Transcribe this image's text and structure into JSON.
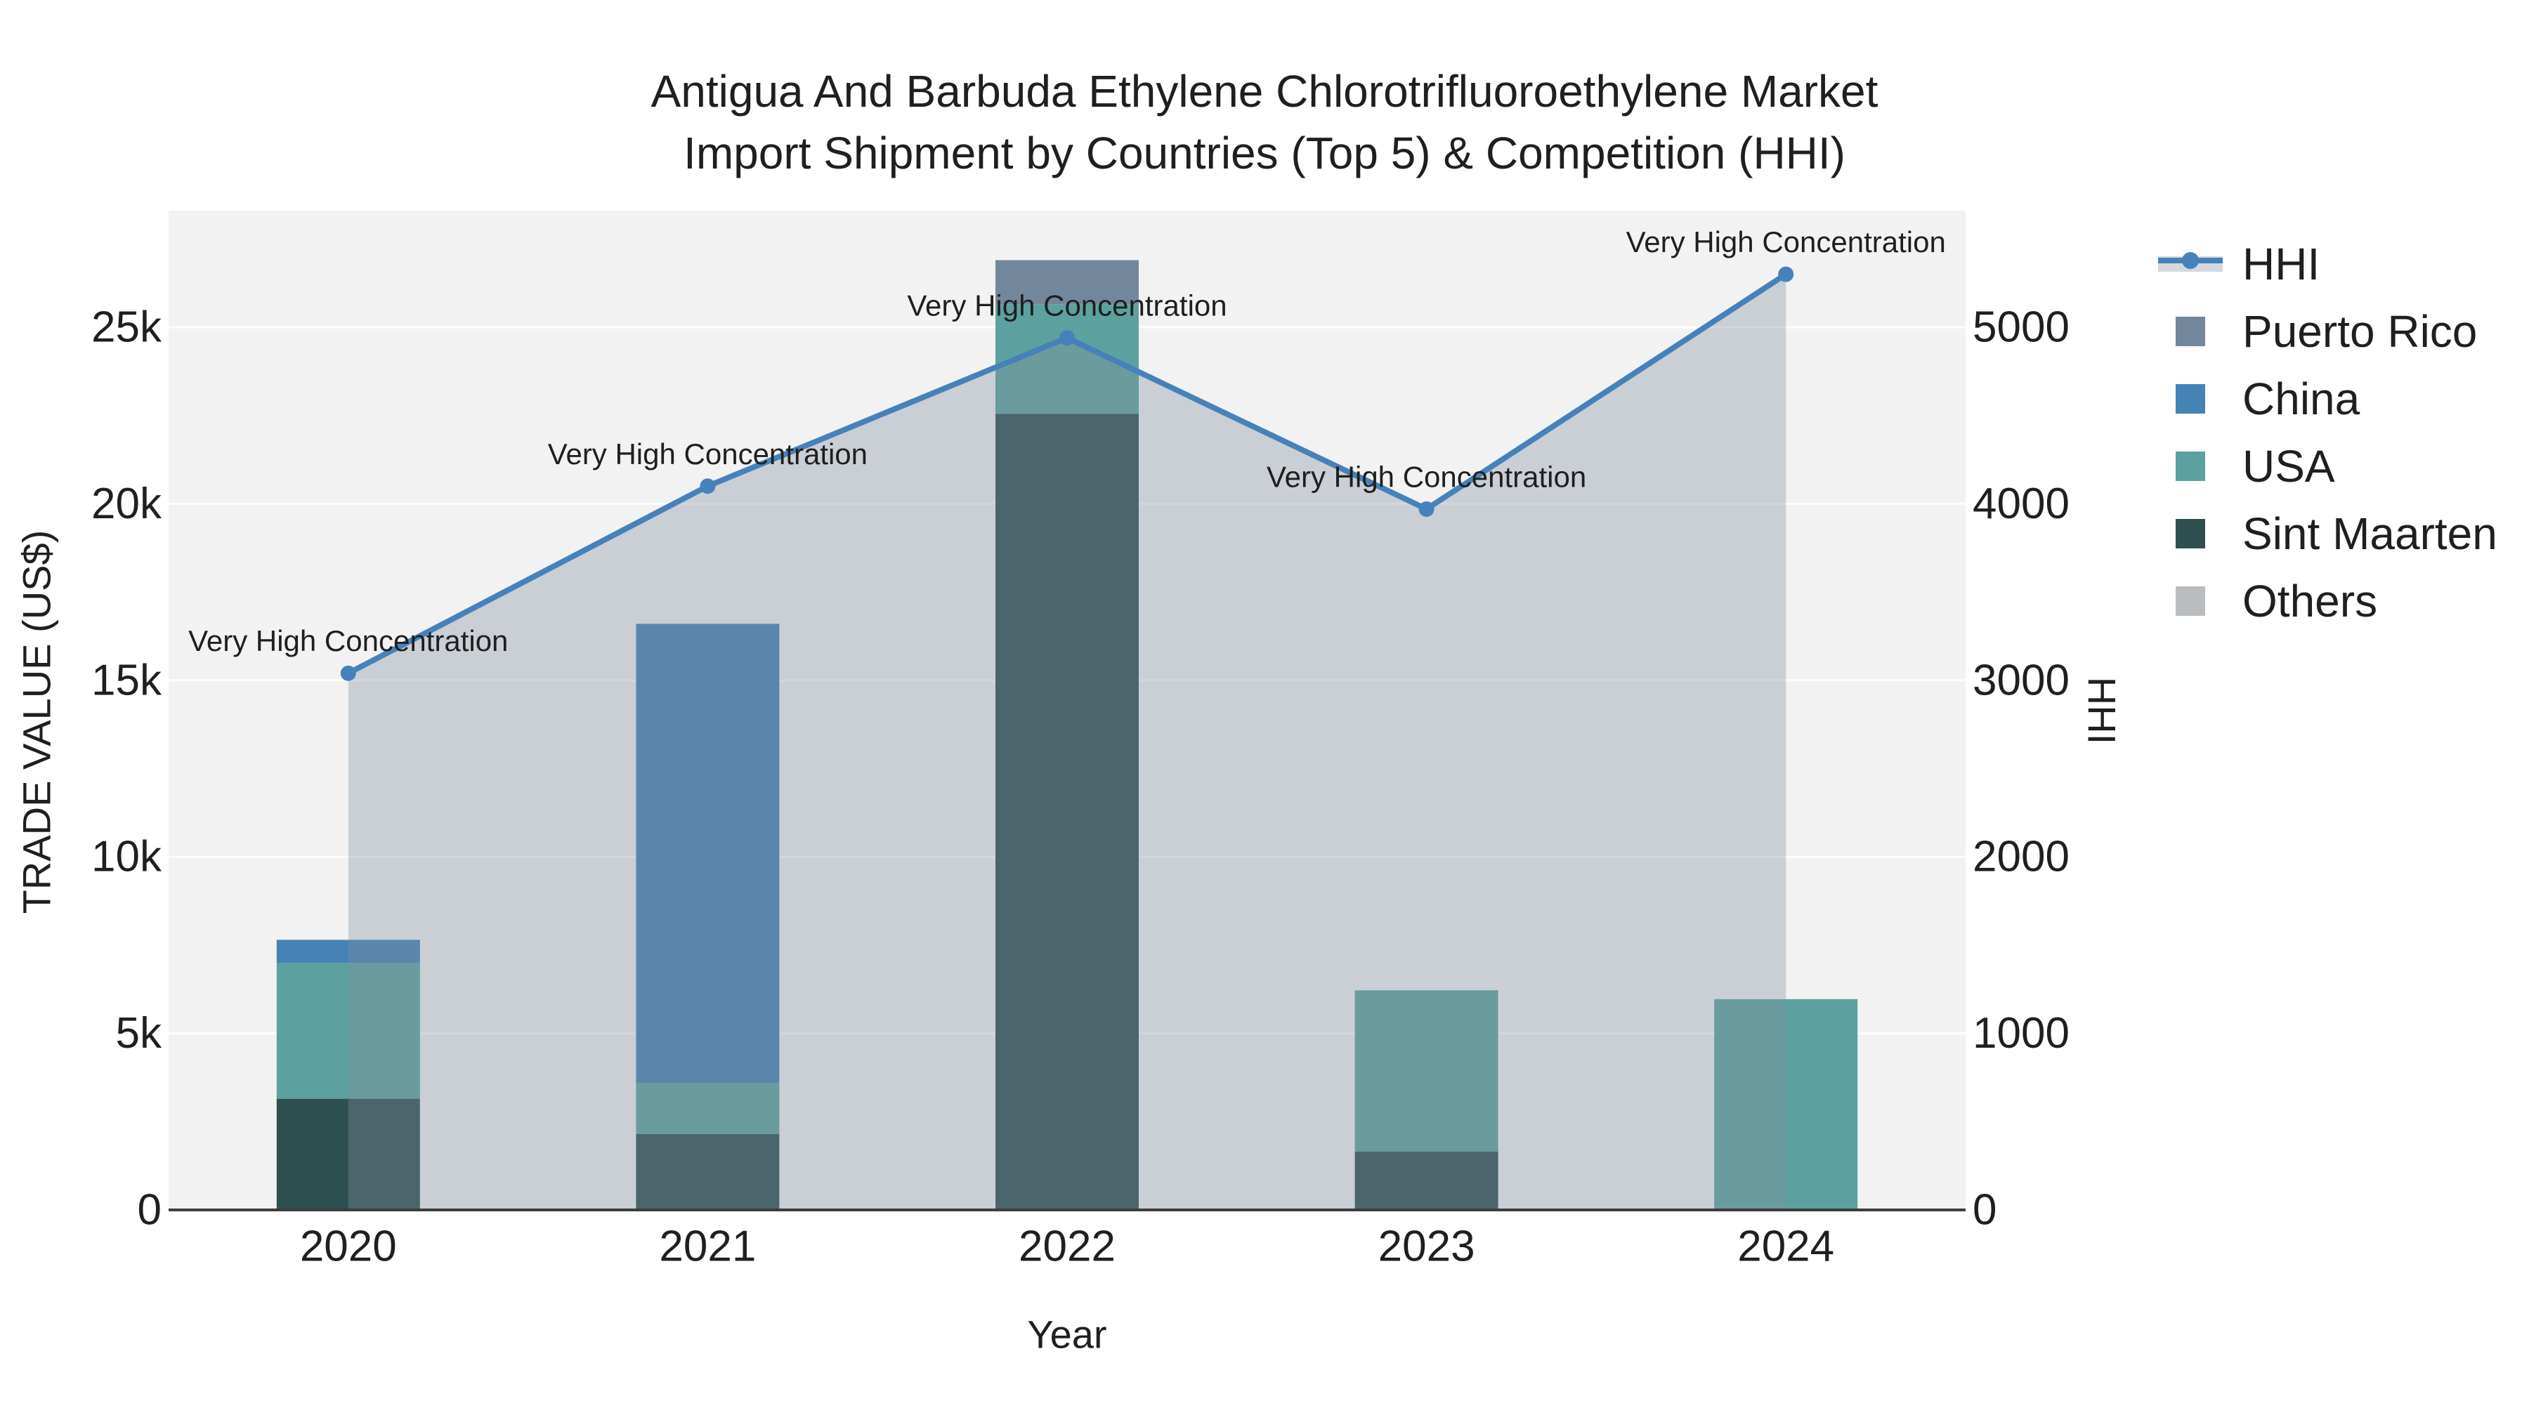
{
  "title": {
    "line1": "Antigua And Barbuda Ethylene Chlorotrifluoroethylene Market",
    "line2": "Import Shipment by Countries (Top 5) & Competition (HHI)"
  },
  "legend": [
    {
      "label": "HHI",
      "kind": "line",
      "color": "#4781ba",
      "band_color": "#d4d8de"
    },
    {
      "label": "Puerto Rico",
      "kind": "square",
      "color": "#73879c"
    },
    {
      "label": "China",
      "kind": "square",
      "color": "#4682b4"
    },
    {
      "label": "USA",
      "kind": "square",
      "color": "#5ca19f"
    },
    {
      "label": "Sint Maarten",
      "kind": "square",
      "color": "#2e4f50"
    },
    {
      "label": "Others",
      "kind": "square",
      "color": "#babdbf"
    }
  ],
  "colors": {
    "plot_background": "#f2f2f2",
    "gridline": "rgba(255,255,255,0.85)",
    "axis_line": "#3d3d3d",
    "text": "#1f1f1f",
    "hhi_line": "#4781ba",
    "hhi_area_fill": "rgba(130,142,160,0.35)"
  },
  "chart_data": {
    "type": "combo: stacked bar + line",
    "title": "Antigua And Barbuda Ethylene Chlorotrifluoroethylene Market Import Shipment by Countries (Top 5) & Competition (HHI)",
    "categories": [
      "2020",
      "2021",
      "2022",
      "2023",
      "2024"
    ],
    "x_label": "Year",
    "bar_series": [
      {
        "name": "Puerto Rico",
        "color": "#73879c",
        "values": [
          0,
          0,
          1250,
          0,
          0
        ]
      },
      {
        "name": "China",
        "color": "#4682b4",
        "values": [
          650,
          13000,
          0,
          0,
          0
        ]
      },
      {
        "name": "USA",
        "color": "#5ca19f",
        "values": [
          3850,
          1450,
          3100,
          4570,
          5970
        ]
      },
      {
        "name": "Sint Maarten",
        "color": "#2e4f50",
        "values": [
          3150,
          2150,
          22550,
          1650,
          0
        ]
      },
      {
        "name": "Others",
        "color": "#babdbf",
        "values": [
          0,
          0,
          0,
          0,
          0
        ]
      }
    ],
    "stack_order_bottom_to_top": [
      "Sint Maarten",
      "USA",
      "China",
      "Puerto Rico",
      "Others"
    ],
    "bar_totals": [
      7650,
      16600,
      26900,
      6220,
      5970
    ],
    "line_series": {
      "name": "HHI",
      "color": "#4781ba",
      "area_fill": "rgba(130,142,160,0.35)",
      "values": [
        3040,
        4100,
        4940,
        3970,
        5300
      ]
    },
    "annotations": [
      "Very High Concentration",
      "Very High Concentration",
      "Very High Concentration",
      "Very High Concentration",
      "Very High Concentration"
    ],
    "left_axis": {
      "title": "TRADE VALUE (US$)",
      "tick_values": [
        0,
        5000,
        10000,
        15000,
        20000,
        25000
      ],
      "tick_labels": [
        "0",
        "5k",
        "10k",
        "15k",
        "20k",
        "25k"
      ],
      "range": [
        0,
        28300
      ]
    },
    "right_axis": {
      "title": "HHI",
      "tick_values": [
        0,
        1000,
        2000,
        3000,
        4000,
        5000
      ],
      "tick_labels": [
        "0",
        "1000",
        "2000",
        "3000",
        "4000",
        "5000"
      ],
      "range": [
        0,
        5660
      ]
    },
    "grid": "horizontal gridlines on",
    "legend_position": "right"
  }
}
